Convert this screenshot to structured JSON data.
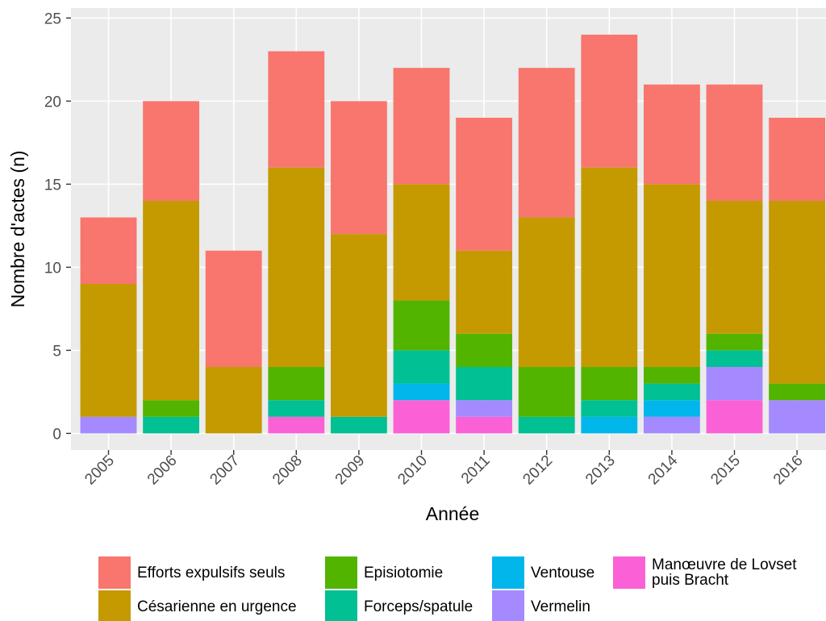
{
  "chart_data": {
    "type": "stacked-bar",
    "x_label": "Année",
    "y_label": "Nombre d'actes (n)",
    "categories": [
      "2005",
      "2006",
      "2007",
      "2008",
      "2009",
      "2010",
      "2011",
      "2012",
      "2013",
      "2014",
      "2015",
      "2016"
    ],
    "series": [
      {
        "name": "Efforts expulsifs seuls",
        "color": "#F8766D",
        "values": [
          4,
          6,
          7,
          7,
          8,
          7,
          8,
          9,
          8,
          6,
          7,
          5
        ]
      },
      {
        "name": "Césarienne en urgence",
        "color": "#C49A00",
        "values": [
          8,
          12,
          4,
          12,
          11,
          7,
          5,
          9,
          12,
          11,
          8,
          11
        ]
      },
      {
        "name": "Episiotomie",
        "color": "#53B400",
        "values": [
          0,
          1,
          0,
          2,
          0,
          3,
          2,
          3,
          2,
          1,
          1,
          1
        ]
      },
      {
        "name": "Forceps/spatule",
        "color": "#00C094",
        "values": [
          0,
          1,
          0,
          1,
          1,
          2,
          2,
          1,
          1,
          1,
          1,
          0
        ]
      },
      {
        "name": "Ventouse",
        "color": "#00B6EB",
        "values": [
          0,
          0,
          0,
          0,
          0,
          1,
          0,
          0,
          1,
          1,
          0,
          0
        ]
      },
      {
        "name": "Vermelin",
        "color": "#A58AFF",
        "values": [
          1,
          0,
          0,
          0,
          0,
          0,
          1,
          0,
          0,
          1,
          2,
          2
        ]
      },
      {
        "name": "Manœuvre de Lovset\n puis Bracht",
        "color": "#FB61D7",
        "values": [
          0,
          0,
          0,
          1,
          0,
          2,
          1,
          0,
          0,
          0,
          2,
          0
        ]
      }
    ],
    "ylim": [
      -1,
      25.6
    ],
    "yticks": [
      0,
      5,
      10,
      15,
      20,
      25
    ],
    "grid": true
  }
}
